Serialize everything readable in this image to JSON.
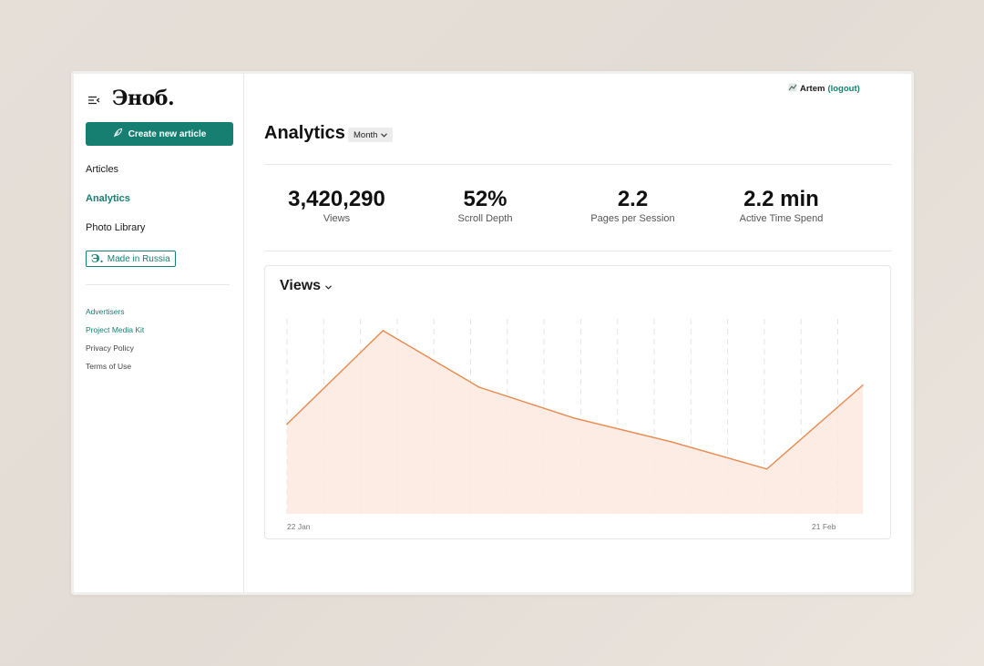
{
  "brand": {
    "logo_text": "Эноб."
  },
  "sidebar": {
    "create_button": "Create new article",
    "nav": [
      {
        "label": "Articles",
        "active": false
      },
      {
        "label": "Analytics",
        "active": true
      },
      {
        "label": "Photo Library",
        "active": false
      }
    ],
    "badge": {
      "mark": "Э.",
      "label": "Made in Russia"
    },
    "footer_links": [
      {
        "label": "Advertisers"
      },
      {
        "label": "Project Media Kit"
      },
      {
        "label": "Privacy Policy"
      },
      {
        "label": "Terms of Use"
      }
    ]
  },
  "header": {
    "user_name": "Artem",
    "logout_label": "(logout)"
  },
  "page": {
    "title": "Analytics",
    "period": "Month"
  },
  "metrics": [
    {
      "value": "3,420,290",
      "label": "Views"
    },
    {
      "value": "52%",
      "label": "Scroll Depth"
    },
    {
      "value": "2.2",
      "label": "Pages per Session"
    },
    {
      "value": "2.2 min",
      "label": "Active Time Spend"
    }
  ],
  "chart": {
    "selector_label": "Views"
  },
  "chart_data": {
    "type": "area",
    "x_tick_labels": [
      "22 Jan",
      "21 Feb"
    ],
    "values": [
      46,
      94,
      65,
      49,
      37,
      23,
      66
    ],
    "ylim": [
      0,
      100
    ],
    "grid": "vertical dashed",
    "colors": {
      "line": "#e8894e",
      "fill": "#fde9df"
    }
  },
  "colors": {
    "accent": "#177f72"
  }
}
